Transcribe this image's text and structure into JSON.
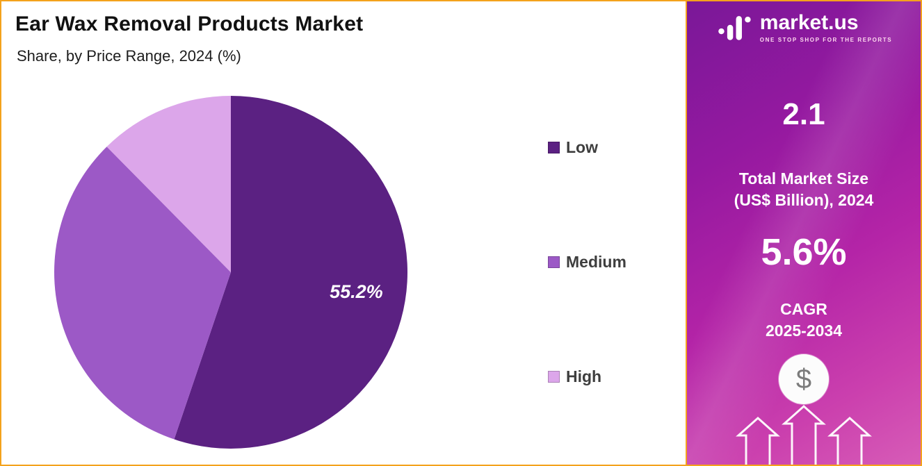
{
  "page": {
    "title": "Ear Wax Removal Products Market",
    "subtitle": "Share, by Price Range, 2024 (%)"
  },
  "chart_data": {
    "type": "pie",
    "title": "Ear Wax Removal Products Market",
    "subtitle": "Share, by Price Range, 2024 (%)",
    "categories": [
      "Low",
      "Medium",
      "High"
    ],
    "values": [
      55.2,
      32.4,
      12.4
    ],
    "unit": "%",
    "colors": [
      "#5b2182",
      "#9c59c6",
      "#dca6ea"
    ],
    "data_labels": [
      {
        "slice_index": 0,
        "text": "55.2%"
      }
    ],
    "start_angle_deg": 0,
    "direction": "clockwise",
    "legend_position": "right"
  },
  "legend": {
    "items": [
      {
        "label": "Low",
        "color": "#5b2182"
      },
      {
        "label": "Medium",
        "color": "#9c59c6"
      },
      {
        "label": "High",
        "color": "#dca6ea"
      }
    ]
  },
  "sidebar": {
    "brand": {
      "name": "market.us",
      "tagline": "ONE STOP SHOP FOR THE REPORTS"
    },
    "market_size": {
      "value": "2.1",
      "label_line1": "Total Market Size",
      "label_line2": "(US$ Billion), 2024"
    },
    "cagr": {
      "value": "5.6%",
      "label_line1": "CAGR",
      "label_line2": "2025-2034"
    },
    "dollar_symbol": "$",
    "accent_border_color": "#f4a21c",
    "gradient_from": "#7a1898",
    "gradient_to": "#d75cb7"
  }
}
